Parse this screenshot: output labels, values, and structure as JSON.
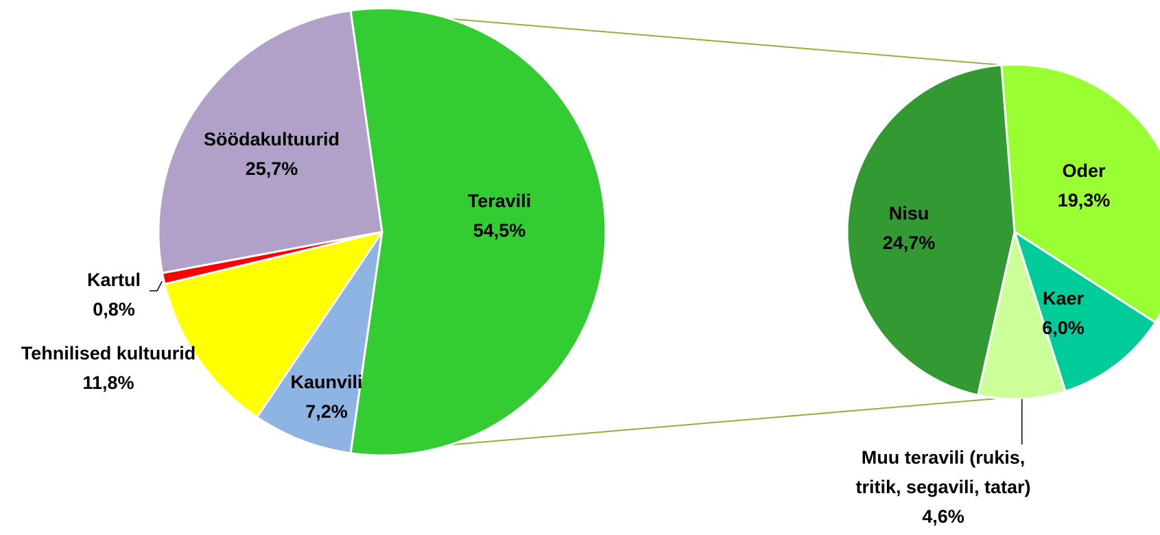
{
  "chart_data": {
    "type": "pie",
    "subtype": "pie-of-pie",
    "colors": {
      "connector": "#8db33a",
      "leader": "#000000",
      "slice_border": "#ffffff"
    },
    "main_pie": {
      "slices": [
        {
          "label": "Teravili",
          "value": 54.5,
          "value_label": "54,5%",
          "color": "#33cc33"
        },
        {
          "label": "Kaunvili",
          "value": 7.2,
          "value_label": "7,2%",
          "color": "#8db4e2"
        },
        {
          "label": "Tehnilised kultuurid",
          "value": 11.8,
          "value_label": "11,8%",
          "color": "#ffff00"
        },
        {
          "label": "Kartul",
          "value": 0.8,
          "value_label": "0,8%",
          "color": "#ff0000"
        },
        {
          "label": "Söödakultuurid",
          "value": 25.7,
          "value_label": "25,7%",
          "color": "#b1a0c7"
        }
      ]
    },
    "secondary_pie": {
      "parent": "Teravili",
      "slices": [
        {
          "label": "Oder",
          "value": 19.3,
          "value_label": "19,3%",
          "color": "#99ff33"
        },
        {
          "label": "Kaer",
          "value": 6.0,
          "value_label": "6,0%",
          "color": "#00cc99"
        },
        {
          "label": "Muu teravili (rukis, tritik, segavili, tatar)",
          "label_lines": [
            "Muu teravili (rukis,",
            "tritik, segavili, tatar)"
          ],
          "value": 4.6,
          "value_label": "4,6%",
          "color": "#ccff99"
        },
        {
          "label": "Nisu",
          "value": 24.7,
          "value_label": "24,7%",
          "color": "#339933"
        }
      ]
    }
  }
}
